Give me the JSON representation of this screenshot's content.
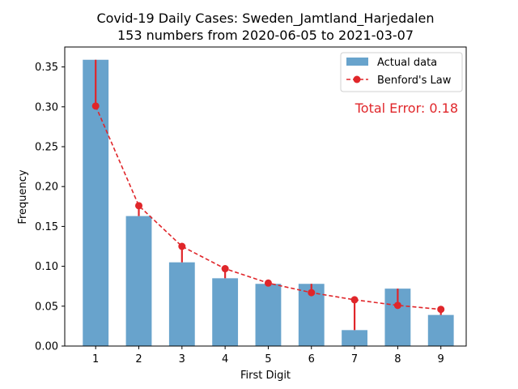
{
  "chart_data": {
    "type": "bar",
    "title": "Covid-19 Daily Cases: Sweden_Jamtland_Harjedalen",
    "subtitle": "153 numbers from 2020-06-05 to 2021-03-07",
    "xlabel": "First Digit",
    "ylabel": "Frequency",
    "categories": [
      "1",
      "2",
      "3",
      "4",
      "5",
      "6",
      "7",
      "8",
      "9"
    ],
    "ylim": [
      0,
      0.375
    ],
    "yticks": [
      "0.00",
      "0.05",
      "0.10",
      "0.15",
      "0.20",
      "0.25",
      "0.30",
      "0.35"
    ],
    "series": [
      {
        "name": "Actual data",
        "kind": "bar",
        "color": "#5b9bc8",
        "values": [
          0.359,
          0.163,
          0.105,
          0.085,
          0.078,
          0.078,
          0.02,
          0.072,
          0.039
        ]
      },
      {
        "name": "Benford's Law",
        "kind": "line-dashed-markers",
        "color": "#e0262a",
        "values": [
          0.301,
          0.176,
          0.125,
          0.097,
          0.079,
          0.067,
          0.058,
          0.051,
          0.046
        ]
      }
    ],
    "annotation": "Total Error: 0.18",
    "legend_position": "top-right",
    "grid": false
  }
}
